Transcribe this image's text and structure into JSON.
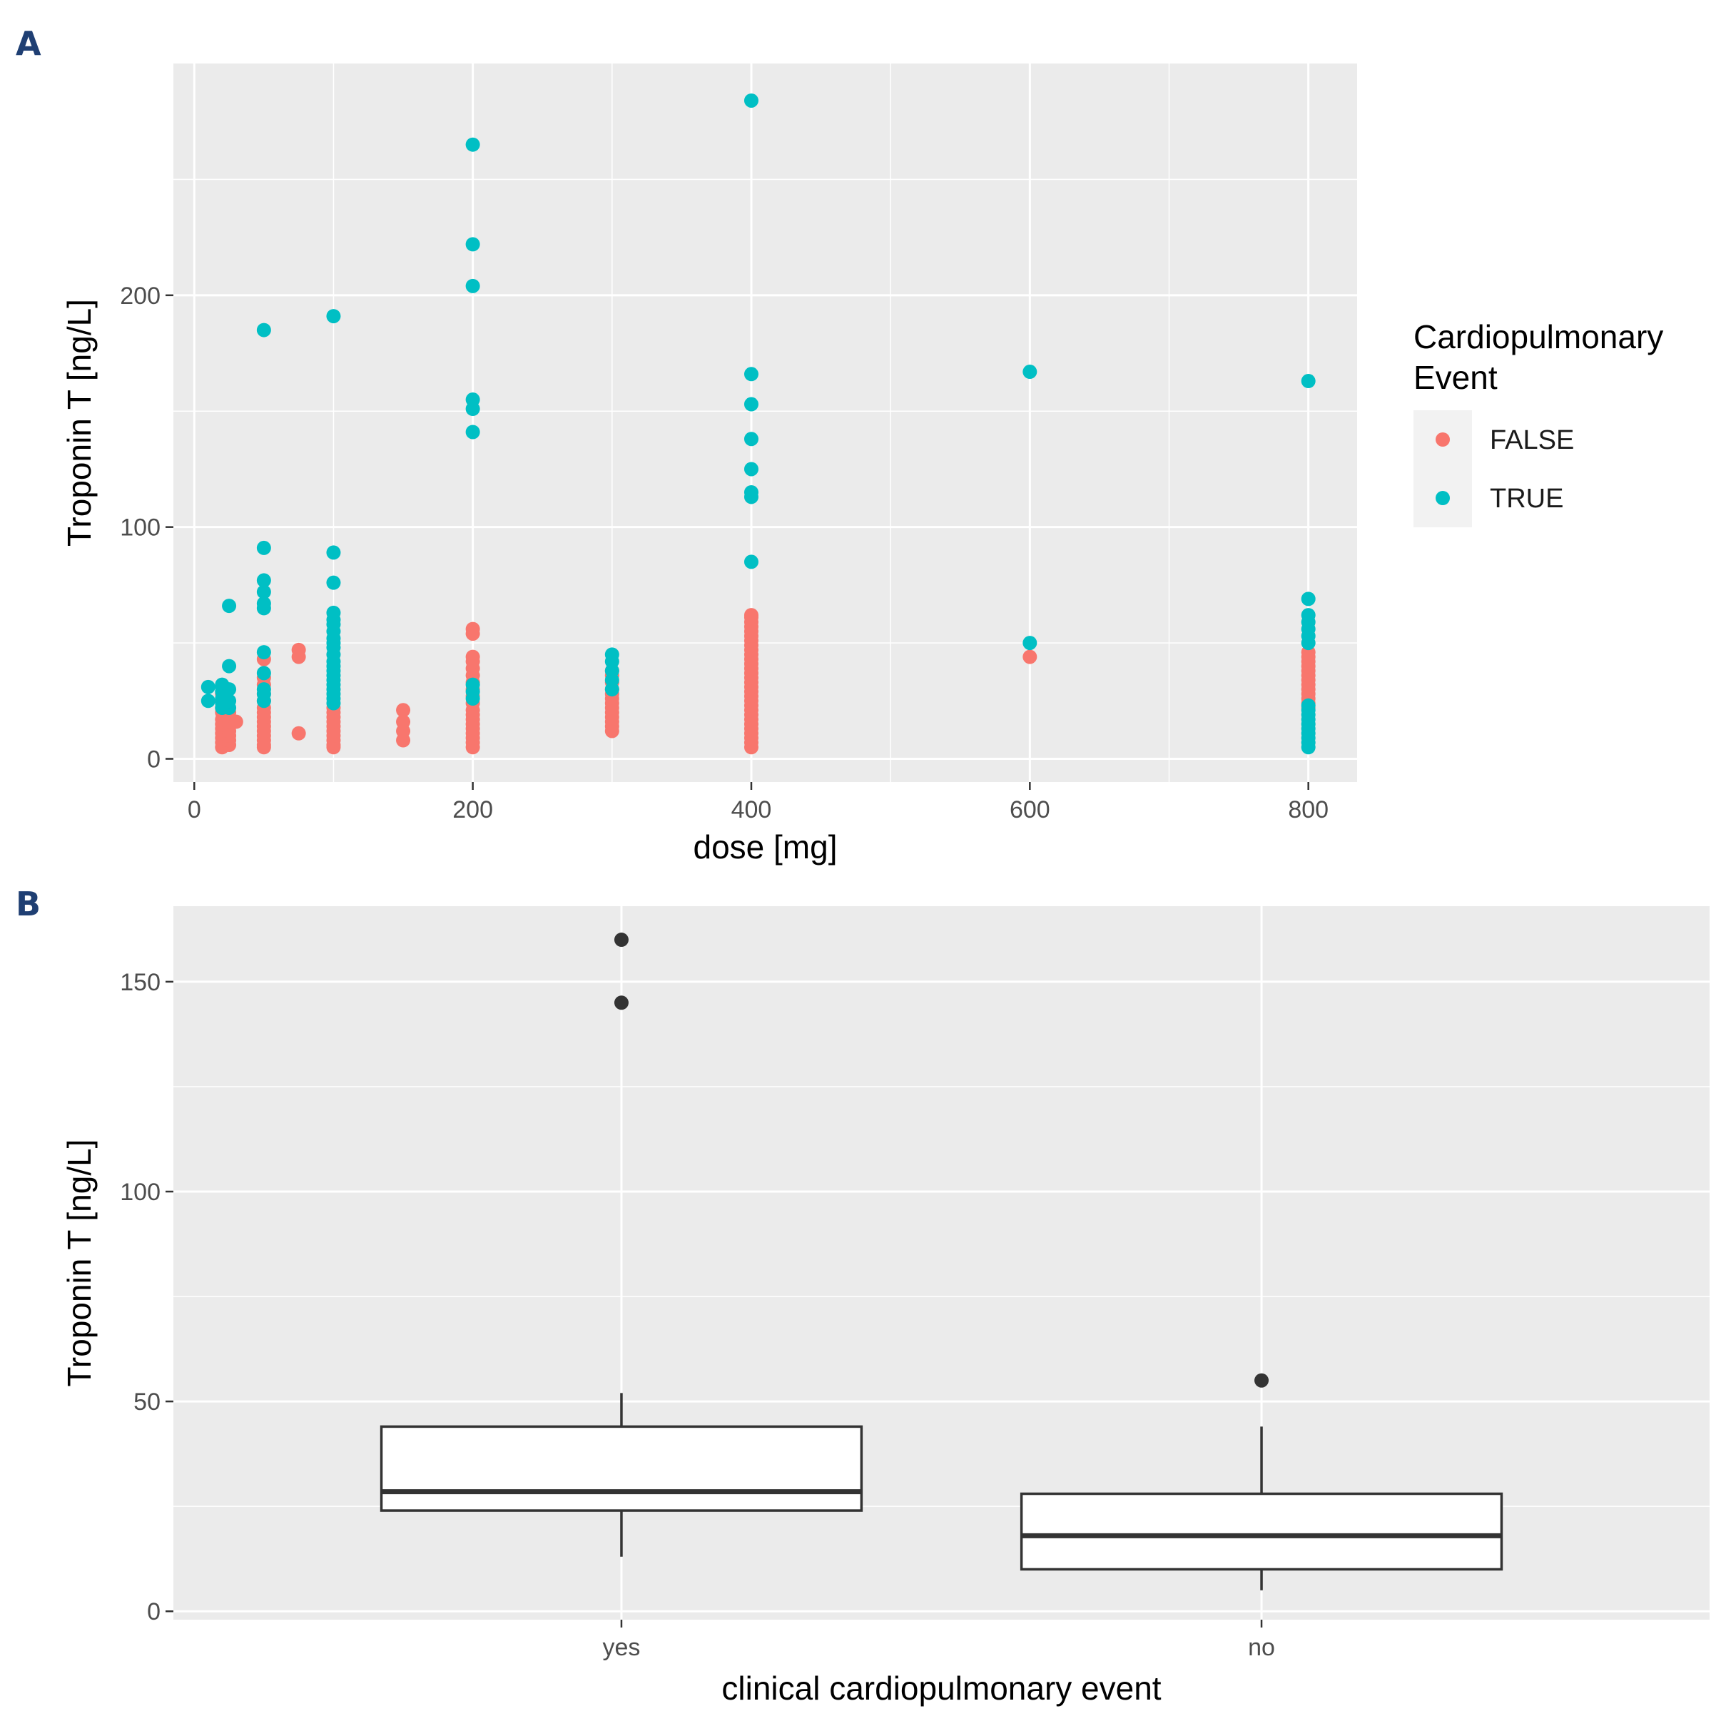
{
  "panels": {
    "a_label": "A",
    "b_label": "B"
  },
  "chart_data": [
    {
      "type": "scatter",
      "xlabel": "dose [mg]",
      "ylabel": "Troponin T [ng/L]",
      "xlim": [
        -15,
        835
      ],
      "ylim": [
        -10,
        300
      ],
      "x_ticks": [
        0,
        200,
        400,
        600,
        800
      ],
      "x_tick_labels": [
        "0",
        "200",
        "400",
        "600",
        "800"
      ],
      "y_ticks": [
        0,
        100,
        200
      ],
      "y_tick_labels": [
        "0",
        "100",
        "200"
      ],
      "grid": true,
      "legend": {
        "title": "Cardiopulmonary\nEvent",
        "position": "right",
        "entries": [
          {
            "label": "FALSE",
            "color": "#F8766D"
          },
          {
            "label": "TRUE",
            "color": "#00BFC4"
          }
        ]
      },
      "series": [
        {
          "name": "FALSE",
          "color": "#F8766D",
          "points": [
            [
              20,
              5
            ],
            [
              20,
              7
            ],
            [
              20,
              9
            ],
            [
              20,
              11
            ],
            [
              20,
              13
            ],
            [
              20,
              15
            ],
            [
              20,
              17
            ],
            [
              20,
              20
            ],
            [
              20,
              22
            ],
            [
              20,
              25
            ],
            [
              20,
              28
            ],
            [
              25,
              6
            ],
            [
              25,
              8
            ],
            [
              25,
              10
            ],
            [
              25,
              12
            ],
            [
              25,
              14
            ],
            [
              25,
              16
            ],
            [
              25,
              18
            ],
            [
              25,
              20
            ],
            [
              30,
              16
            ],
            [
              50,
              5
            ],
            [
              50,
              6
            ],
            [
              50,
              8
            ],
            [
              50,
              10
            ],
            [
              50,
              12
            ],
            [
              50,
              14
            ],
            [
              50,
              16
            ],
            [
              50,
              18
            ],
            [
              50,
              20
            ],
            [
              50,
              22
            ],
            [
              50,
              25
            ],
            [
              50,
              28
            ],
            [
              50,
              32
            ],
            [
              50,
              35
            ],
            [
              50,
              43
            ],
            [
              75,
              11
            ],
            [
              75,
              44
            ],
            [
              75,
              47
            ],
            [
              100,
              5
            ],
            [
              100,
              6
            ],
            [
              100,
              8
            ],
            [
              100,
              10
            ],
            [
              100,
              12
            ],
            [
              100,
              14
            ],
            [
              100,
              16
            ],
            [
              100,
              18
            ],
            [
              100,
              20
            ],
            [
              100,
              22
            ],
            [
              150,
              8
            ],
            [
              150,
              12
            ],
            [
              150,
              16
            ],
            [
              150,
              21
            ],
            [
              200,
              5
            ],
            [
              200,
              7
            ],
            [
              200,
              9
            ],
            [
              200,
              11
            ],
            [
              200,
              13
            ],
            [
              200,
              15
            ],
            [
              200,
              17
            ],
            [
              200,
              19
            ],
            [
              200,
              21
            ],
            [
              200,
              24
            ],
            [
              200,
              27
            ],
            [
              200,
              30
            ],
            [
              200,
              33
            ],
            [
              200,
              36
            ],
            [
              200,
              39
            ],
            [
              200,
              42
            ],
            [
              200,
              44
            ],
            [
              200,
              54
            ],
            [
              200,
              56
            ],
            [
              300,
              12
            ],
            [
              300,
              14
            ],
            [
              300,
              16
            ],
            [
              300,
              18
            ],
            [
              300,
              20
            ],
            [
              300,
              22
            ],
            [
              300,
              24
            ],
            [
              300,
              26
            ],
            [
              300,
              28
            ],
            [
              300,
              30
            ],
            [
              300,
              33
            ],
            [
              300,
              36
            ],
            [
              300,
              38
            ],
            [
              400,
              5
            ],
            [
              400,
              7
            ],
            [
              400,
              9
            ],
            [
              400,
              11
            ],
            [
              400,
              13
            ],
            [
              400,
              15
            ],
            [
              400,
              17
            ],
            [
              400,
              19
            ],
            [
              400,
              21
            ],
            [
              400,
              23
            ],
            [
              400,
              25
            ],
            [
              400,
              27
            ],
            [
              400,
              29
            ],
            [
              400,
              31
            ],
            [
              400,
              33
            ],
            [
              400,
              35
            ],
            [
              400,
              37
            ],
            [
              400,
              39
            ],
            [
              400,
              41
            ],
            [
              400,
              43
            ],
            [
              400,
              45
            ],
            [
              400,
              47
            ],
            [
              400,
              49
            ],
            [
              400,
              51
            ],
            [
              400,
              53
            ],
            [
              400,
              55
            ],
            [
              400,
              57
            ],
            [
              400,
              59
            ],
            [
              400,
              61
            ],
            [
              400,
              62
            ],
            [
              600,
              44
            ],
            [
              800,
              22
            ],
            [
              800,
              24
            ],
            [
              800,
              26
            ],
            [
              800,
              28
            ],
            [
              800,
              30
            ],
            [
              800,
              32
            ],
            [
              800,
              34
            ],
            [
              800,
              36
            ],
            [
              800,
              38
            ],
            [
              800,
              40
            ],
            [
              800,
              42
            ],
            [
              800,
              44
            ],
            [
              800,
              46
            ]
          ]
        },
        {
          "name": "TRUE",
          "color": "#00BFC4",
          "points": [
            [
              10,
              25
            ],
            [
              10,
              31
            ],
            [
              20,
              22
            ],
            [
              20,
              24
            ],
            [
              20,
              26
            ],
            [
              20,
              29
            ],
            [
              20,
              31
            ],
            [
              20,
              32
            ],
            [
              25,
              22
            ],
            [
              25,
              25
            ],
            [
              25,
              30
            ],
            [
              25,
              40
            ],
            [
              25,
              66
            ],
            [
              50,
              25
            ],
            [
              50,
              28
            ],
            [
              50,
              30
            ],
            [
              50,
              37
            ],
            [
              50,
              46
            ],
            [
              50,
              65
            ],
            [
              50,
              67
            ],
            [
              50,
              72
            ],
            [
              50,
              77
            ],
            [
              50,
              91
            ],
            [
              50,
              185
            ],
            [
              100,
              24
            ],
            [
              100,
              26
            ],
            [
              100,
              28
            ],
            [
              100,
              30
            ],
            [
              100,
              32
            ],
            [
              100,
              34
            ],
            [
              100,
              36
            ],
            [
              100,
              38
            ],
            [
              100,
              40
            ],
            [
              100,
              42
            ],
            [
              100,
              45
            ],
            [
              100,
              48
            ],
            [
              100,
              50
            ],
            [
              100,
              52
            ],
            [
              100,
              55
            ],
            [
              100,
              58
            ],
            [
              100,
              60
            ],
            [
              100,
              63
            ],
            [
              100,
              76
            ],
            [
              100,
              89
            ],
            [
              100,
              191
            ],
            [
              200,
              26
            ],
            [
              200,
              29
            ],
            [
              200,
              32
            ],
            [
              200,
              141
            ],
            [
              200,
              151
            ],
            [
              200,
              155
            ],
            [
              200,
              204
            ],
            [
              200,
              222
            ],
            [
              200,
              265
            ],
            [
              300,
              30
            ],
            [
              300,
              34
            ],
            [
              300,
              38
            ],
            [
              300,
              42
            ],
            [
              300,
              45
            ],
            [
              400,
              85
            ],
            [
              400,
              113
            ],
            [
              400,
              115
            ],
            [
              400,
              125
            ],
            [
              400,
              138
            ],
            [
              400,
              153
            ],
            [
              400,
              166
            ],
            [
              400,
              284
            ],
            [
              600,
              50
            ],
            [
              600,
              167
            ],
            [
              800,
              5
            ],
            [
              800,
              7
            ],
            [
              800,
              9
            ],
            [
              800,
              11
            ],
            [
              800,
              13
            ],
            [
              800,
              15
            ],
            [
              800,
              17
            ],
            [
              800,
              19
            ],
            [
              800,
              21
            ],
            [
              800,
              23
            ],
            [
              800,
              50
            ],
            [
              800,
              53
            ],
            [
              800,
              56
            ],
            [
              800,
              59
            ],
            [
              800,
              62
            ],
            [
              800,
              69
            ],
            [
              800,
              163
            ]
          ]
        }
      ]
    },
    {
      "type": "box",
      "xlabel": "clinical cardiopulmonary event",
      "ylabel": "Troponin T [ng/L]",
      "ylim": [
        -2,
        168
      ],
      "y_ticks": [
        0,
        50,
        100,
        150
      ],
      "y_tick_labels": [
        "0",
        "50",
        "100",
        "150"
      ],
      "grid": true,
      "categories": [
        "yes",
        "no"
      ],
      "boxes": [
        {
          "category": "yes",
          "whisker_low": 13,
          "q1": 24,
          "median": 28.5,
          "q3": 44,
          "whisker_high": 52,
          "outliers": [
            145,
            160
          ]
        },
        {
          "category": "no",
          "whisker_low": 5,
          "q1": 10,
          "median": 18,
          "q3": 28,
          "whisker_high": 44,
          "outliers": [
            55
          ]
        }
      ]
    }
  ]
}
